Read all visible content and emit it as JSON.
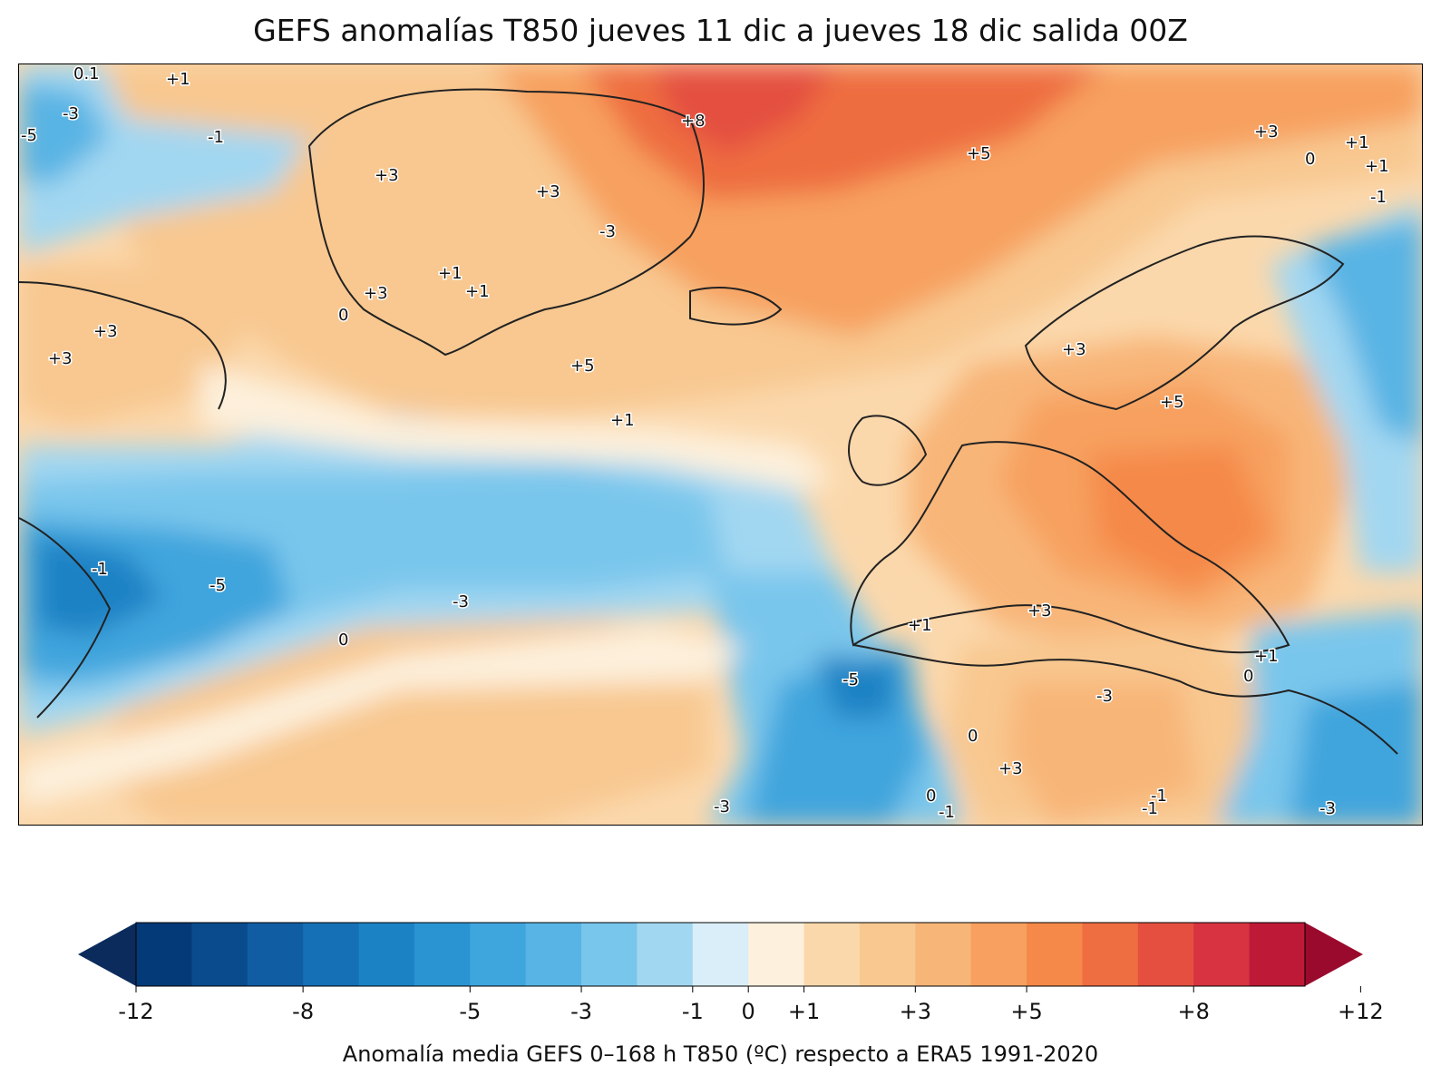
{
  "title": "GEFS anomalías T850 jueves 11 dic a jueves 18 dic salida 00Z",
  "colorbar": {
    "caption": "Anomalía media GEFS 0–168 h T850 (ºC) respecto a ERA5 1991-2020",
    "colors": [
      "#0b2b5c",
      "#053a78",
      "#0a4b8d",
      "#105da3",
      "#1570b5",
      "#1b82c4",
      "#2a94d2",
      "#3fa5dd",
      "#58b4e4",
      "#79c6ec",
      "#a2d7f1",
      "#d9eef8",
      "#fdf0dc",
      "#fbd8ac",
      "#f8c890",
      "#f8b578",
      "#f7a05f",
      "#f58949",
      "#ee6d41",
      "#e44f3f",
      "#d73341",
      "#be1a37",
      "#9a0a2c"
    ],
    "ticks": [
      "-12",
      "-8",
      "-5",
      "-3",
      "-1",
      "0",
      "+1",
      "+3",
      "+5",
      "+8",
      "+12"
    ]
  },
  "map": {
    "contour_labels": [
      "0.1",
      "+1",
      "-3",
      "-5",
      "-1",
      "+3",
      "+3",
      "+8",
      "+5",
      "+3",
      "+1",
      "0",
      "+1",
      "-1",
      "-3",
      "+1",
      "+1",
      "+3",
      "0",
      "+3",
      "+3",
      "+3",
      "+5",
      "+5",
      "+1",
      "-1",
      "-5",
      "-3",
      "0",
      "+1",
      "+3",
      "+1",
      "-5",
      "-3",
      "0",
      "+3",
      "-1",
      "0",
      "0",
      "-1",
      "-1",
      "-3",
      "-3"
    ]
  }
}
